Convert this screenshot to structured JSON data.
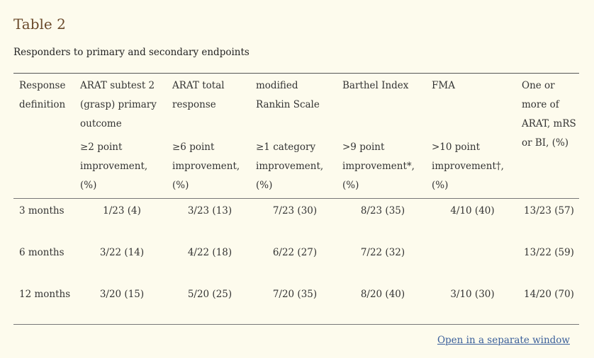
{
  "header": {
    "title": "Table 2",
    "caption": "Responders to primary and secondary endpoints"
  },
  "table": {
    "columns": [
      {
        "name": "Response definition"
      },
      {
        "name": "ARAT subtest 2 (grasp) primary outcome",
        "threshold": "≥2 point improvement, (%)"
      },
      {
        "name": "ARAT total response",
        "threshold": "≥6 point improvement, (%)"
      },
      {
        "name": "modified Rankin Scale",
        "threshold": "≥1 category improvement, (%)"
      },
      {
        "name": "Barthel Index",
        "threshold": ">9 point improvement*, (%)"
      },
      {
        "name": "FMA",
        "threshold": ">10 point improvement†, (%)"
      },
      {
        "name": "One or more of ARAT, mRS or BI, (%)"
      }
    ],
    "rows": [
      [
        "3 months",
        "1/23 (4)",
        "3/23 (13)",
        "7/23 (30)",
        "8/23 (35)",
        "4/10 (40)",
        "13/23 (57)"
      ],
      [
        "6 months",
        "3/22 (14)",
        "4/22 (18)",
        "6/22 (27)",
        "7/22 (32)",
        null,
        "13/22 (59)"
      ],
      [
        "12 months",
        "3/20 (15)",
        "5/20 (25)",
        "7/20 (35)",
        "8/20 (40)",
        "3/10 (30)",
        "14/20 (70)"
      ]
    ]
  },
  "footer": {
    "link": "Open in a separate window"
  }
}
